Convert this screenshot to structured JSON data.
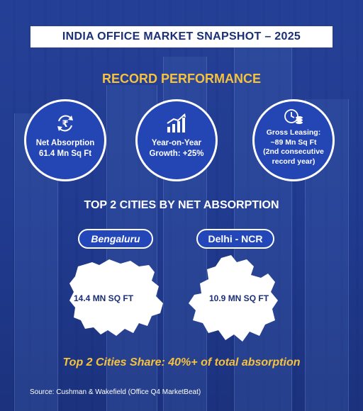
{
  "title": "INDIA OFFICE MARKET SNAPSHOT – 2025",
  "section1_title": "RECORD PERFORMANCE",
  "stats": [
    {
      "icon": "rupee-cycle-icon",
      "line1": "Net Absorption",
      "line2": "61.4 Mn Sq Ft"
    },
    {
      "icon": "growth-chart-icon",
      "line1": "Year-on-Year",
      "line2": "Growth: +25%"
    },
    {
      "icon": "clock-coins-icon",
      "line1": "Gross Leasing:",
      "line2": "~89 Mn Sq Ft",
      "line3": "(2nd consecutive",
      "line4": "record year)"
    }
  ],
  "section2_title": "TOP 2 CITIES BY NET ABSORPTION",
  "cities": [
    {
      "name": "Bengaluru",
      "value": "14.4 MN SQ FT"
    },
    {
      "name": "Delhi - NCR",
      "value": "10.9 MN SQ FT"
    }
  ],
  "share_text": "Top 2 Cities Share: 40%+ of total absorption",
  "source": "Source: Cushman & Wakefield (Office Q4 MarketBeat)",
  "colors": {
    "navy": "#1b2f77",
    "accent": "#f6c23e",
    "circle": "#2445b4"
  }
}
